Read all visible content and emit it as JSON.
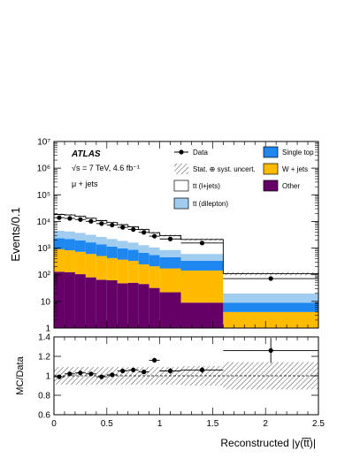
{
  "chart_data": [
    {
      "type": "bar",
      "title": "",
      "ylabel": "Events/0.1",
      "yscale": "log",
      "ylim": [
        1,
        10000000
      ],
      "xlim": [
        0,
        2.5
      ],
      "bin_edges": [
        0,
        0.1,
        0.2,
        0.3,
        0.4,
        0.5,
        0.6,
        0.7,
        0.8,
        0.9,
        1.0,
        1.2,
        1.6,
        2.5
      ],
      "y_ticks": [
        {
          "value": 1,
          "label": "1"
        },
        {
          "value": 10,
          "label": "10"
        },
        {
          "value": 100,
          "label": "10²"
        },
        {
          "value": 1000,
          "label": "10³"
        },
        {
          "value": 10000,
          "label": "10⁴"
        },
        {
          "value": 100000,
          "label": "10⁵"
        },
        {
          "value": 1000000,
          "label": "10⁶"
        },
        {
          "value": 10000000,
          "label": "10⁷"
        }
      ],
      "experiment": "ATLAS",
      "energy_label": "√s = 7 TeV, 4.6 fb⁻¹",
      "channel_label": "μ + jets",
      "stack_order": [
        "Other",
        "W + jets",
        "Single top",
        "tt (dilepton)",
        "tt (l+jets)"
      ],
      "series": [
        {
          "name": "Other",
          "color": "#650066",
          "values": [
            130,
            125,
            105,
            80,
            65,
            62,
            48,
            50,
            45,
            32,
            22,
            9,
            1
          ]
        },
        {
          "name": "W + jets",
          "color": "#ffbb00",
          "values": [
            780,
            700,
            620,
            520,
            440,
            360,
            320,
            280,
            200,
            175,
            150,
            135,
            3
          ]
        },
        {
          "name": "Single top",
          "color": "#1e88f0",
          "values": [
            1450,
            1380,
            1230,
            1040,
            860,
            720,
            610,
            530,
            420,
            340,
            280,
            190,
            5
          ]
        },
        {
          "name": "tt (dilepton)",
          "color": "#a0ccf0",
          "values": [
            2150,
            2030,
            1790,
            1530,
            1260,
            1070,
            900,
            760,
            630,
            520,
            400,
            270,
            11
          ]
        },
        {
          "name": "tt (l+jets)",
          "color": "#ffffff",
          "values": [
            13800,
            13300,
            11800,
            10000,
            8100,
            6900,
            5700,
            4700,
            3700,
            2700,
            2100,
            1500,
            90
          ]
        }
      ],
      "data_points": {
        "name": "Data",
        "x": [
          0.05,
          0.15,
          0.25,
          0.35,
          0.45,
          0.55,
          0.65,
          0.75,
          0.85,
          0.95,
          1.1,
          1.4,
          2.05
        ],
        "y": [
          13800,
          13000,
          11800,
          10100,
          8300,
          7300,
          6000,
          5000,
          3900,
          2800,
          2200,
          1550,
          72
        ]
      },
      "legend": [
        {
          "label": "Data",
          "kind": "marker"
        },
        {
          "label": "Single top",
          "kind": "box",
          "color": "#1e88f0"
        },
        {
          "label": "Stat. ⊕ syst. uncert.",
          "kind": "hatch"
        },
        {
          "label": "W + jets",
          "kind": "box",
          "color": "#ffbb00"
        },
        {
          "label": "tt (l+jets)",
          "kind": "box",
          "color": "#ffffff"
        },
        {
          "label": "Other",
          "kind": "box",
          "color": "#650066"
        },
        {
          "label": "tt (dilepton)",
          "kind": "box",
          "color": "#a0ccf0"
        }
      ],
      "legend_placement": "top-right",
      "uncertainty": {
        "label": "Stat. ⊕ syst. uncert.",
        "relative": 0.1
      }
    },
    {
      "type": "scatter",
      "ylabel": "MC/Data",
      "xlabel": "Reconstructed |y(t̅t̅)|",
      "ylim": [
        0.6,
        1.4
      ],
      "xlim": [
        0,
        2.5
      ],
      "y_ticks": [
        "0.6",
        "0.8",
        "1",
        "1.2",
        "1.4"
      ],
      "x_ticks": [
        "0",
        "0.5",
        "1",
        "1.5",
        "2",
        "2.5"
      ],
      "bin_edges": [
        0,
        0.1,
        0.2,
        0.3,
        0.4,
        0.5,
        0.6,
        0.7,
        0.8,
        0.9,
        1.0,
        1.2,
        1.6,
        2.5
      ],
      "x": [
        0.05,
        0.15,
        0.25,
        0.35,
        0.45,
        0.55,
        0.65,
        0.75,
        0.85,
        0.95,
        1.1,
        1.4,
        2.05
      ],
      "y": [
        0.99,
        1.02,
        1.03,
        1.02,
        0.99,
        1.01,
        1.05,
        1.06,
        1.04,
        1.16,
        1.05,
        1.06,
        1.26
      ],
      "yerr": [
        0.015,
        0.015,
        0.015,
        0.015,
        0.018,
        0.018,
        0.02,
        0.02,
        0.022,
        0.025,
        0.03,
        0.03,
        0.13
      ],
      "band": [
        0.09,
        0.09,
        0.09,
        0.09,
        0.09,
        0.09,
        0.09,
        0.09,
        0.09,
        0.09,
        0.09,
        0.1,
        0.14
      ],
      "reference_line": 1
    }
  ]
}
